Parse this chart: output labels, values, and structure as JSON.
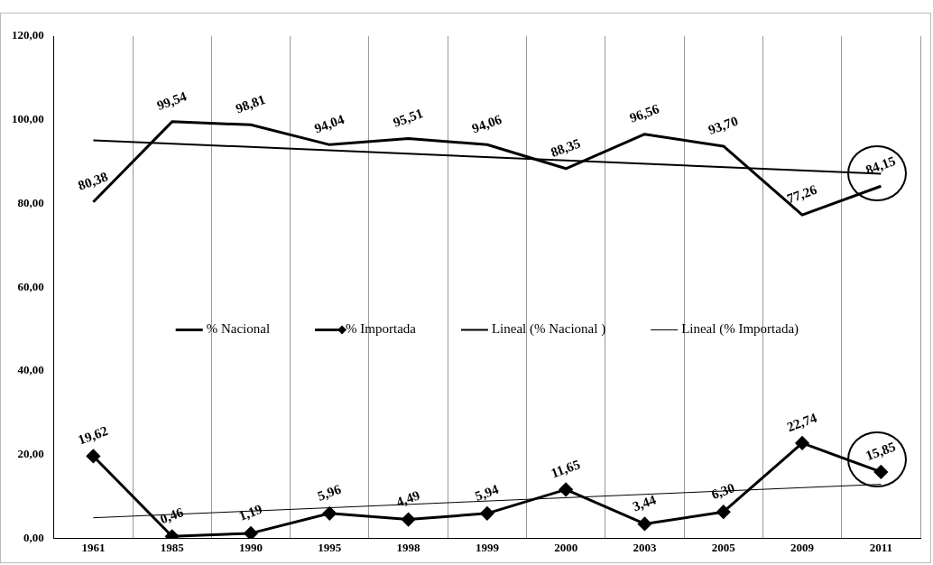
{
  "chart_data": {
    "type": "line",
    "categories": [
      "1961",
      "1985",
      "1990",
      "1995",
      "1998",
      "1999",
      "2000",
      "2003",
      "2005",
      "2009",
      "2011"
    ],
    "series": [
      {
        "name": "% Nacional",
        "color": "#000000",
        "marker": "none",
        "values": [
          80.38,
          99.54,
          98.81,
          94.04,
          95.51,
          94.06,
          88.35,
          96.56,
          93.7,
          77.26,
          84.15
        ],
        "value_labels": [
          "80,38",
          "99,54",
          "98,81",
          "94,04",
          "95,51",
          "94,06",
          "88,35",
          "96,56",
          "93,70",
          "77,26",
          "84,15"
        ]
      },
      {
        "name": "% Importada",
        "color": "#000000",
        "marker": "diamond",
        "values": [
          19.62,
          0.46,
          1.19,
          5.96,
          4.49,
          5.94,
          11.65,
          3.44,
          6.3,
          22.74,
          15.85
        ],
        "value_labels": [
          "19,62",
          "0,46",
          "1,19",
          "5,96",
          "4,49",
          "5,94",
          "11,65",
          "3,44",
          "6,30",
          "22,74",
          "15,85"
        ]
      },
      {
        "name": "Lineal (% Nacional )",
        "type": "line",
        "color": "#000000",
        "marker": "none",
        "values": [
          95.1,
          null,
          null,
          null,
          null,
          null,
          null,
          null,
          null,
          null,
          87.1
        ]
      },
      {
        "name": "Lineal (% Importada)",
        "type": "line",
        "color": "#000000",
        "marker": "none",
        "values": [
          4.9,
          null,
          null,
          null,
          null,
          null,
          null,
          null,
          null,
          null,
          12.9
        ]
      }
    ],
    "ylim": [
      0,
      120
    ],
    "yticks": [
      {
        "value": 0,
        "label": "0,00"
      },
      {
        "value": 20,
        "label": "20,00"
      },
      {
        "value": 40,
        "label": "40,00"
      },
      {
        "value": 60,
        "label": "60,00"
      },
      {
        "value": 80,
        "label": "80,00"
      },
      {
        "value": 100,
        "label": "100,00"
      },
      {
        "value": 120,
        "label": "120,00"
      }
    ],
    "grid": "x",
    "legend": "center",
    "line_style": "solid"
  }
}
